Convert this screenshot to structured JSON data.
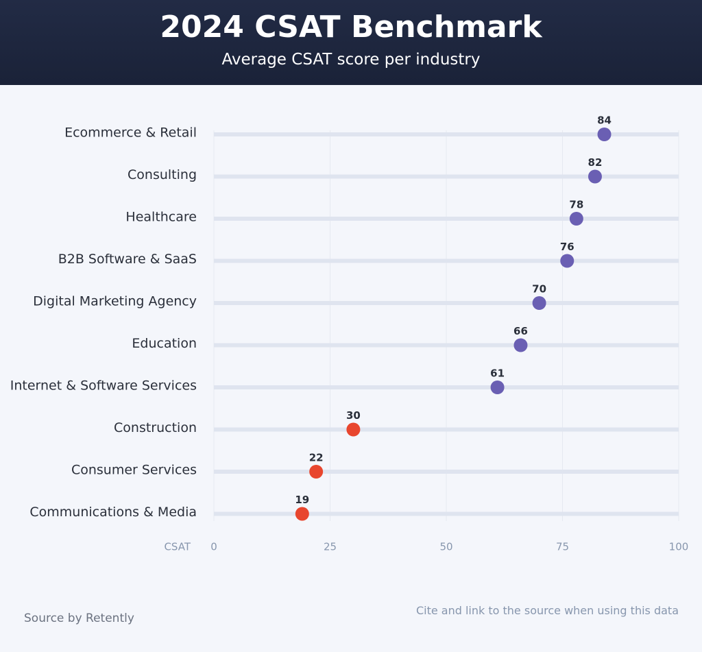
{
  "chart_data": {
    "type": "dot",
    "title": "2024 CSAT Benchmark",
    "subtitle": "Average CSAT score per industry",
    "x_axis_label": "CSAT",
    "categories": [
      "Ecommerce & Retail",
      "Consulting",
      "Healthcare",
      "B2B Software & SaaS",
      "Digital Marketing Agency",
      "Education",
      "Internet & Software Services",
      "Construction",
      "Consumer Services",
      "Communications & Media"
    ],
    "values": [
      84,
      82,
      78,
      76,
      70,
      66,
      61,
      30,
      22,
      19
    ],
    "colors": [
      "#6a5fb3",
      "#6a5fb3",
      "#6a5fb3",
      "#6a5fb3",
      "#6a5fb3",
      "#6a5fb3",
      "#6a5fb3",
      "#e8462e",
      "#e8462e",
      "#e8462e"
    ],
    "xlim": [
      0,
      100
    ],
    "xticks": [
      0,
      25,
      50,
      75,
      100
    ],
    "grid": true
  },
  "footer": {
    "source": "Source by Retently",
    "note": "Cite and link to the source when using this data"
  }
}
